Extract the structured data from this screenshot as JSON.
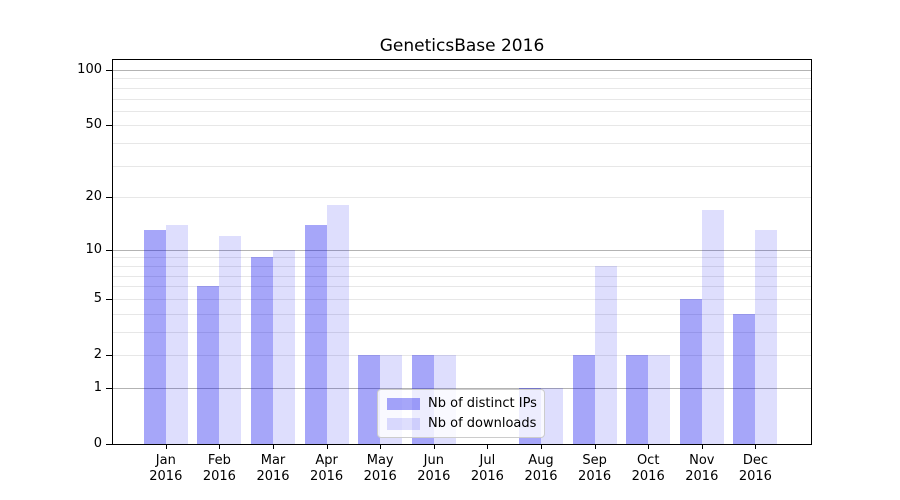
{
  "chart_data": {
    "type": "bar",
    "title": "GeneticsBase 2016",
    "xlabel": "",
    "ylabel": "",
    "yscale": "log(value+1)",
    "ylim": [
      0,
      113
    ],
    "categories": [
      "Jan",
      "Feb",
      "Mar",
      "Apr",
      "May",
      "Jun",
      "Jul",
      "Aug",
      "Sep",
      "Oct",
      "Nov",
      "Dec"
    ],
    "category_year": "2016",
    "series": [
      {
        "name": "Nb of distinct IPs",
        "color": "rgba(0,0,238,0.35)",
        "color_hex_on_white": "#a6a6f9",
        "values": [
          13,
          6,
          9,
          14,
          2,
          2,
          0,
          1,
          2,
          2,
          5,
          4
        ]
      },
      {
        "name": "Nb of downloads",
        "color": "rgba(0,0,238,0.13)",
        "color_hex_on_white": "#dedefb",
        "values": [
          14,
          12,
          10,
          18,
          2,
          2,
          0,
          1,
          8,
          2,
          17,
          13
        ]
      }
    ],
    "y_ticks": [
      {
        "value": 0,
        "label": "0"
      },
      {
        "value": 1,
        "label": "1"
      },
      {
        "value": 2,
        "label": "2"
      },
      {
        "value": 5,
        "label": "5"
      },
      {
        "value": 10,
        "label": "10"
      },
      {
        "value": 20,
        "label": "20"
      },
      {
        "value": 50,
        "label": "50"
      },
      {
        "value": 100,
        "label": "100"
      }
    ],
    "grid": {
      "major_values": [
        1,
        10,
        100
      ],
      "minor_values": [
        2,
        3,
        4,
        5,
        6,
        7,
        8,
        9,
        20,
        30,
        40,
        50,
        60,
        70,
        80,
        90
      ],
      "major_color": "#b3b3b3",
      "minor_color": "#e7e7e7"
    },
    "legend": {
      "position": "lower center"
    }
  }
}
